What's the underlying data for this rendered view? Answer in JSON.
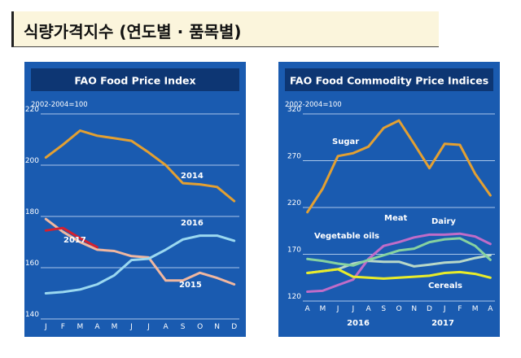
{
  "page_title": "식량가격지수 (연도별 · 품목별)",
  "chart_data": [
    {
      "type": "line",
      "title": "FAO Food Price Index",
      "unit_note": "2002-2004=100",
      "xlabel": "",
      "ylabel": "",
      "categories": [
        "J",
        "F",
        "M",
        "A",
        "M",
        "J",
        "J",
        "A",
        "S",
        "O",
        "N",
        "D"
      ],
      "ylim": [
        140,
        220
      ],
      "yticks": [
        140,
        160,
        180,
        200,
        220
      ],
      "grid": true,
      "colors": {
        "background": "#1a5bb0",
        "panel": "#0d3673",
        "gridline": "#a9c6ea",
        "text": "#ffffff"
      },
      "series": [
        {
          "name": "2014",
          "color": "#e3a032",
          "values": [
            203,
            208,
            213.5,
            211.5,
            210.5,
            209.5,
            205,
            200,
            193,
            192.5,
            191.5,
            186
          ]
        },
        {
          "name": "2015",
          "color": "#f0b7a0",
          "values": [
            179,
            174,
            170,
            167,
            166.5,
            164.5,
            164,
            155,
            155,
            158,
            156,
            153.5
          ]
        },
        {
          "name": "2016",
          "color": "#9ad8f0",
          "values": [
            150,
            150.5,
            151.5,
            153.5,
            157,
            163,
            163.5,
            167,
            171,
            172.5,
            172.5,
            170.5
          ]
        },
        {
          "name": "2017",
          "color": "#d4202f",
          "values": [
            174.5,
            175.5,
            171.5,
            168,
            null,
            null,
            null,
            null,
            null,
            null,
            null,
            null
          ]
        }
      ],
      "series_labels": [
        "2014",
        "2015",
        "2016",
        "2017"
      ]
    },
    {
      "type": "line",
      "title": "FAO Food Commodity Price Indices",
      "unit_note": "2002-2004=100",
      "xlabel": "",
      "ylabel": "",
      "categories": [
        "A",
        "M",
        "J",
        "J",
        "A",
        "S",
        "O",
        "N",
        "D",
        "J",
        "F",
        "M",
        "A"
      ],
      "year_labels": [
        "2016",
        "2017"
      ],
      "ylim": [
        120,
        320
      ],
      "yticks": [
        120,
        170,
        220,
        270,
        320
      ],
      "grid": true,
      "colors": {
        "background": "#1a5bb0",
        "panel": "#0d3673",
        "gridline": "#a9c6ea",
        "text": "#ffffff"
      },
      "series": [
        {
          "name": "Sugar",
          "color": "#e3a032",
          "values": [
            215,
            240,
            275,
            278,
            285,
            305,
            313,
            288,
            262,
            288,
            287,
            256,
            233
          ]
        },
        {
          "name": "Meat",
          "color": "#b8d8c8",
          "values": [
            150,
            152,
            154,
            160,
            163,
            162,
            162,
            157,
            159,
            161,
            162,
            166,
            169
          ]
        },
        {
          "name": "Dairy",
          "color": "#c06cc8",
          "values": [
            130,
            131,
            137,
            143,
            165,
            179,
            183,
            188,
            191,
            191,
            192,
            189,
            181
          ]
        },
        {
          "name": "Vegetable oils",
          "color": "#86d2a0",
          "values": [
            165,
            163,
            160,
            158,
            164,
            169,
            174,
            176,
            183,
            186,
            187,
            179,
            164
          ]
        },
        {
          "name": "Cereals",
          "color": "#e8ec2a",
          "values": [
            150,
            152,
            154,
            146,
            145,
            144,
            145,
            146,
            147,
            150,
            151,
            149,
            145
          ]
        }
      ],
      "series_labels": [
        "Sugar",
        "Meat",
        "Dairy",
        "Vegetable oils",
        "Cereals"
      ]
    }
  ]
}
